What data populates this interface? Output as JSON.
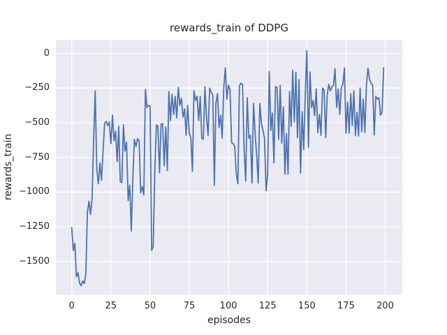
{
  "figure": {
    "title": "rewards_train of DDPG",
    "xlabel": "episodes",
    "ylabel": "rewards_train"
  },
  "colors": {
    "line": "#4c72b0",
    "plot_background": "#eaeaf2",
    "grid": "#ffffff",
    "text": "#262626",
    "figure_background": "#ffffff"
  },
  "chart_data": {
    "type": "line",
    "title": "rewards_train of DDPG",
    "xlabel": "episodes",
    "ylabel": "rewards_train",
    "grid": true,
    "legend": "none",
    "plot_bg": "#eaeaf2",
    "grid_color": "#ffffff",
    "line_color": "#4c72b0",
    "xlim": [
      -10.1,
      210.9
    ],
    "ylim": [
      -1740,
      95
    ],
    "x_ticks": [
      0,
      25,
      50,
      75,
      100,
      125,
      150,
      175,
      200
    ],
    "x_tick_labels": [
      "0",
      "25",
      "50",
      "75",
      "100",
      "125",
      "150",
      "175",
      "200"
    ],
    "y_ticks": [
      0,
      -250,
      -500,
      -750,
      -1000,
      -1250,
      -1500
    ],
    "y_tick_labels": [
      "0",
      "−250",
      "−500",
      "−750",
      "−1000",
      "−1250",
      "−1500"
    ],
    "series": [
      {
        "name": "rewards_train",
        "x_start": 0,
        "x_step": 1,
        "values": [
          -1255,
          -1420,
          -1370,
          -1610,
          -1580,
          -1655,
          -1675,
          -1640,
          -1660,
          -1590,
          -1150,
          -1065,
          -1160,
          -1050,
          -615,
          -270,
          -835,
          -940,
          -790,
          -915,
          -700,
          -505,
          -490,
          -520,
          -495,
          -650,
          -445,
          -630,
          -560,
          -780,
          -525,
          -925,
          -930,
          -515,
          -705,
          -640,
          -1060,
          -950,
          -1280,
          -900,
          -620,
          -670,
          -615,
          -630,
          -1005,
          -960,
          -1020,
          -260,
          -390,
          -375,
          -380,
          -1420,
          -1390,
          -860,
          -515,
          -525,
          -860,
          -510,
          -505,
          -810,
          -530,
          -845,
          -275,
          -485,
          -295,
          -440,
          -310,
          -465,
          -245,
          -375,
          -325,
          -460,
          -400,
          -590,
          -375,
          -575,
          -610,
          -850,
          -270,
          -340,
          -310,
          -485,
          -310,
          -610,
          -620,
          -240,
          -460,
          -590,
          -250,
          -280,
          -300,
          -950,
          -360,
          -290,
          -535,
          -445,
          -610,
          -245,
          -105,
          -330,
          -230,
          -260,
          -645,
          -650,
          -670,
          -865,
          -940,
          -235,
          -215,
          -225,
          -695,
          -920,
          -320,
          -610,
          -590,
          -935,
          -360,
          -575,
          -740,
          -935,
          -360,
          -500,
          -555,
          -610,
          -990,
          -870,
          -130,
          -555,
          -430,
          -790,
          -240,
          -245,
          -620,
          -230,
          -647,
          -385,
          -871,
          -578,
          -871,
          -275,
          -525,
          -122,
          -495,
          -137,
          -608,
          -190,
          -862,
          -420,
          -693,
          -290,
          20,
          -677,
          -134,
          -390,
          -340,
          -450,
          -255,
          -570,
          -440,
          -590,
          -250,
          -262,
          -608,
          -300,
          -222,
          -270,
          -240,
          -230,
          -110,
          -390,
          -258,
          -440,
          -250,
          -222,
          -105,
          -575,
          -350,
          -575,
          -290,
          -520,
          -270,
          -590,
          -425,
          -595,
          -250,
          -565,
          -330,
          -570,
          -235,
          -107,
          -185,
          -215,
          -230,
          -588,
          -310,
          -330,
          -320,
          -445,
          -425,
          -103
        ]
      }
    ]
  }
}
